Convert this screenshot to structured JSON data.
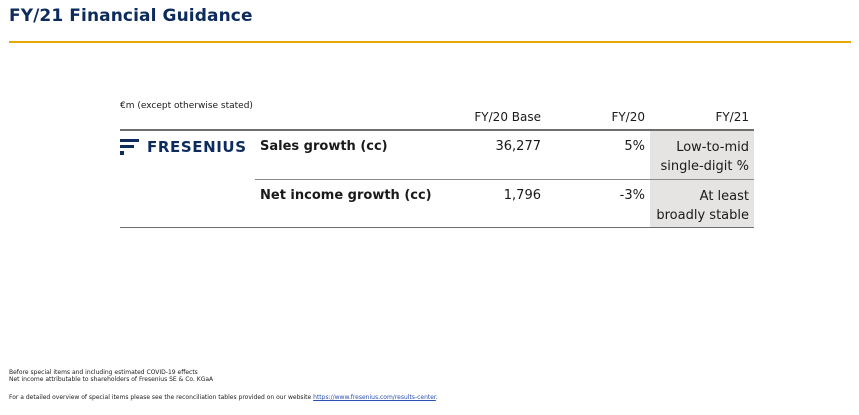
{
  "slide": {
    "title": "FY/21 Financial Guidance"
  },
  "table": {
    "unit_note": "€m (except otherwise stated)",
    "columns": {
      "base": "FY/20 Base",
      "fy20": "FY/20",
      "fy21": "FY/21"
    },
    "logo_text": "FRESENIUS",
    "rows": [
      {
        "label": "Sales growth (cc)",
        "base": "36,277",
        "fy20": "5%",
        "fy21": "Low-to-mid single-digit %"
      },
      {
        "label": "Net income growth (cc)",
        "base": "1,796",
        "fy20": "-3%",
        "fy21": "At least broadly stable"
      }
    ]
  },
  "footnotes": {
    "line1": "Before special items and including estimated COVID-19 effects",
    "line2": "Net income attributable to shareholders of Fresenius SE & Co. KGaA",
    "line3_prefix": "For a detailed overview of special items please see the reconciliation tables provided on our website ",
    "line3_link": "https://www.fresenius.com/results-center",
    "line3_suffix": "."
  },
  "colors": {
    "title": "#0d2b5c",
    "accent_rule": "#e8a800",
    "fy21_shade": "#e6e4e2",
    "link": "#2a4fb5"
  }
}
